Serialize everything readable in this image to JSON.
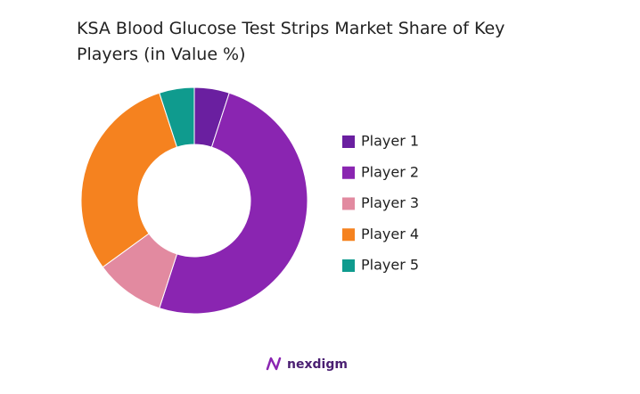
{
  "chart_data": {
    "type": "donut",
    "title": "KSA Blood Glucose Test Strips Market Share of Key Players (in Value %)",
    "categories": [
      "Player 1",
      "Player 2",
      "Player 3",
      "Player 4",
      "Player 5"
    ],
    "values": [
      5,
      50,
      10,
      30,
      5
    ],
    "colors": [
      "#6a1fa0",
      "#8a25b1",
      "#e28aa0",
      "#f5821f",
      "#0f9b8e"
    ],
    "legend": "right"
  },
  "brand": "nexdigm"
}
